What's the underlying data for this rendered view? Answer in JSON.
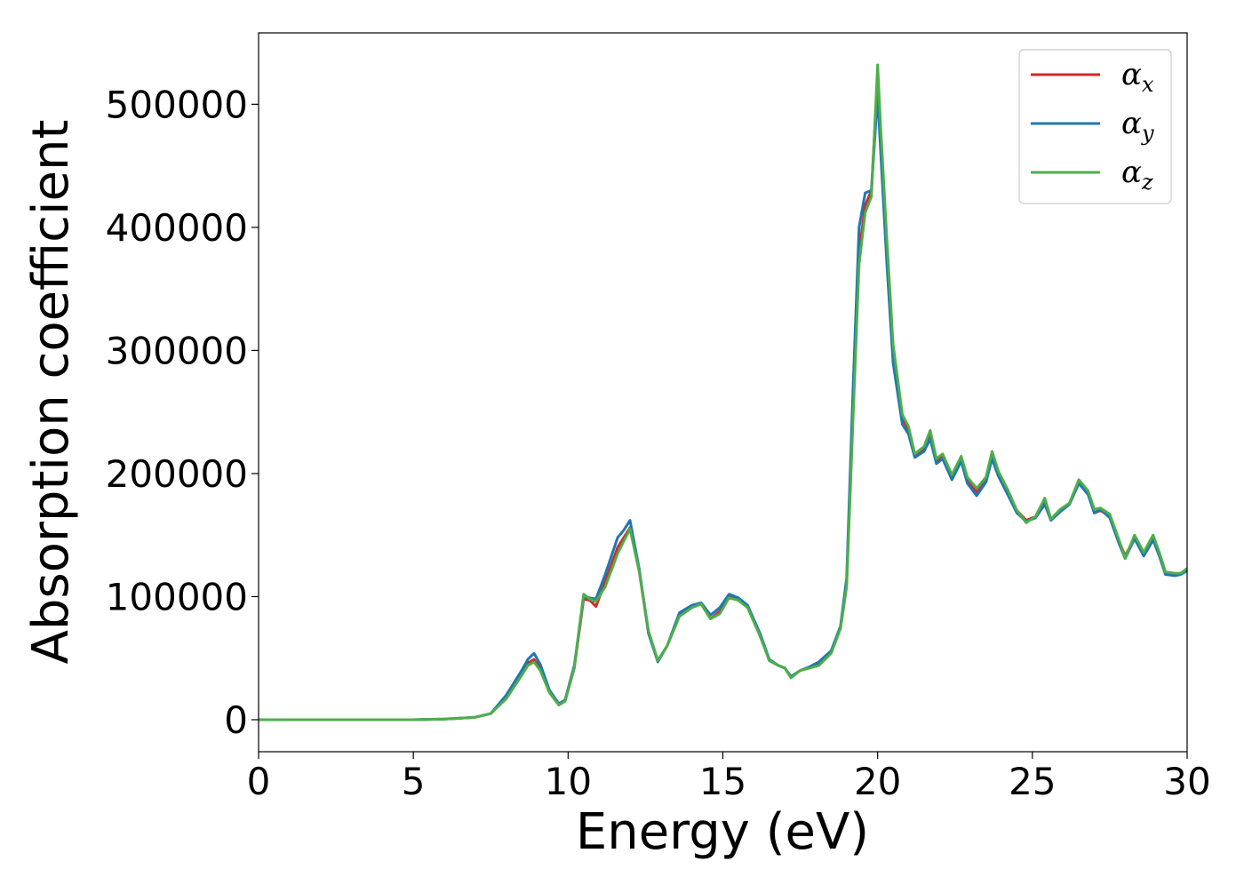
{
  "chart_data": {
    "type": "line",
    "xlabel": "Energy (eV)",
    "ylabel": "Absorption coefficient",
    "xlim": [
      0,
      30
    ],
    "ylim": [
      -26000,
      558000
    ],
    "x_ticks": [
      0,
      5,
      10,
      15,
      20,
      25,
      30
    ],
    "y_ticks": [
      0,
      100000,
      200000,
      300000,
      400000,
      500000
    ],
    "legend_position": "upper-right",
    "grid": false,
    "series": [
      {
        "name": "α_x",
        "label_main": "α",
        "label_sub": "x",
        "color": "#d62728",
        "points": [
          [
            0,
            0
          ],
          [
            5,
            0
          ],
          [
            6,
            500
          ],
          [
            7,
            2000
          ],
          [
            7.5,
            5000
          ],
          [
            8,
            18000
          ],
          [
            8.5,
            38000
          ],
          [
            8.7,
            46000
          ],
          [
            8.9,
            49000
          ],
          [
            9.1,
            42000
          ],
          [
            9.4,
            22000
          ],
          [
            9.7,
            12000
          ],
          [
            9.9,
            15000
          ],
          [
            10.2,
            42000
          ],
          [
            10.5,
            98000
          ],
          [
            10.7,
            97000
          ],
          [
            10.9,
            92000
          ],
          [
            11.2,
            112000
          ],
          [
            11.6,
            140000
          ],
          [
            11.8,
            148000
          ],
          [
            12.0,
            156000
          ],
          [
            12.3,
            120000
          ],
          [
            12.6,
            70000
          ],
          [
            12.9,
            48000
          ],
          [
            13.2,
            60000
          ],
          [
            13.6,
            85000
          ],
          [
            14.0,
            92000
          ],
          [
            14.3,
            94000
          ],
          [
            14.6,
            82000
          ],
          [
            14.9,
            88000
          ],
          [
            15.2,
            100000
          ],
          [
            15.5,
            98000
          ],
          [
            15.8,
            92000
          ],
          [
            16.2,
            70000
          ],
          [
            16.5,
            48000
          ],
          [
            16.8,
            44000
          ],
          [
            17.0,
            42000
          ],
          [
            17.2,
            35000
          ],
          [
            17.5,
            40000
          ],
          [
            17.8,
            42000
          ],
          [
            18.1,
            45000
          ],
          [
            18.5,
            55000
          ],
          [
            18.8,
            75000
          ],
          [
            19.0,
            110000
          ],
          [
            19.2,
            250000
          ],
          [
            19.4,
            380000
          ],
          [
            19.6,
            418000
          ],
          [
            19.8,
            430000
          ],
          [
            20.0,
            522000
          ],
          [
            20.1,
            470000
          ],
          [
            20.3,
            380000
          ],
          [
            20.5,
            300000
          ],
          [
            20.8,
            245000
          ],
          [
            21.0,
            235000
          ],
          [
            21.2,
            215000
          ],
          [
            21.5,
            220000
          ],
          [
            21.7,
            232000
          ],
          [
            21.9,
            210000
          ],
          [
            22.1,
            215000
          ],
          [
            22.4,
            198000
          ],
          [
            22.7,
            212000
          ],
          [
            22.9,
            195000
          ],
          [
            23.2,
            185000
          ],
          [
            23.5,
            196000
          ],
          [
            23.7,
            215000
          ],
          [
            23.9,
            200000
          ],
          [
            24.2,
            185000
          ],
          [
            24.5,
            170000
          ],
          [
            24.8,
            162000
          ],
          [
            25.1,
            165000
          ],
          [
            25.4,
            177000
          ],
          [
            25.6,
            163000
          ],
          [
            25.9,
            170000
          ],
          [
            26.2,
            176000
          ],
          [
            26.5,
            193000
          ],
          [
            26.8,
            185000
          ],
          [
            27.0,
            168000
          ],
          [
            27.2,
            170000
          ],
          [
            27.5,
            165000
          ],
          [
            27.8,
            145000
          ],
          [
            28.0,
            133000
          ],
          [
            28.3,
            148000
          ],
          [
            28.6,
            135000
          ],
          [
            28.9,
            148000
          ],
          [
            29.1,
            135000
          ],
          [
            29.3,
            120000
          ],
          [
            29.6,
            118000
          ],
          [
            29.8,
            119000
          ],
          [
            30,
            122000
          ]
        ]
      },
      {
        "name": "α_y",
        "label_main": "α",
        "label_sub": "y",
        "color": "#1f77b4",
        "points": [
          [
            0,
            0
          ],
          [
            5,
            0
          ],
          [
            6,
            500
          ],
          [
            7,
            2000
          ],
          [
            7.5,
            5000
          ],
          [
            8,
            20000
          ],
          [
            8.5,
            40000
          ],
          [
            8.7,
            49000
          ],
          [
            8.9,
            54000
          ],
          [
            9.1,
            45000
          ],
          [
            9.4,
            24000
          ],
          [
            9.7,
            13000
          ],
          [
            9.9,
            16000
          ],
          [
            10.2,
            44000
          ],
          [
            10.5,
            100000
          ],
          [
            10.7,
            99000
          ],
          [
            10.9,
            98000
          ],
          [
            11.2,
            118000
          ],
          [
            11.6,
            148000
          ],
          [
            11.8,
            154000
          ],
          [
            12.0,
            162000
          ],
          [
            12.3,
            122000
          ],
          [
            12.6,
            70000
          ],
          [
            12.9,
            47000
          ],
          [
            13.2,
            60000
          ],
          [
            13.6,
            87000
          ],
          [
            14.0,
            93000
          ],
          [
            14.3,
            95000
          ],
          [
            14.6,
            85000
          ],
          [
            14.9,
            91000
          ],
          [
            15.2,
            102000
          ],
          [
            15.5,
            99000
          ],
          [
            15.8,
            93000
          ],
          [
            16.2,
            70000
          ],
          [
            16.5,
            49000
          ],
          [
            16.8,
            44000
          ],
          [
            17.0,
            42000
          ],
          [
            17.2,
            35000
          ],
          [
            17.5,
            40000
          ],
          [
            17.8,
            43000
          ],
          [
            18.1,
            47000
          ],
          [
            18.5,
            56000
          ],
          [
            18.8,
            76000
          ],
          [
            19.0,
            115000
          ],
          [
            19.2,
            265000
          ],
          [
            19.4,
            400000
          ],
          [
            19.6,
            428000
          ],
          [
            19.8,
            430000
          ],
          [
            20.0,
            508000
          ],
          [
            20.1,
            460000
          ],
          [
            20.3,
            370000
          ],
          [
            20.5,
            290000
          ],
          [
            20.8,
            240000
          ],
          [
            21.0,
            232000
          ],
          [
            21.2,
            213000
          ],
          [
            21.5,
            218000
          ],
          [
            21.7,
            228000
          ],
          [
            21.9,
            208000
          ],
          [
            22.1,
            212000
          ],
          [
            22.4,
            195000
          ],
          [
            22.7,
            210000
          ],
          [
            22.9,
            192000
          ],
          [
            23.2,
            182000
          ],
          [
            23.5,
            193000
          ],
          [
            23.7,
            212000
          ],
          [
            23.9,
            198000
          ],
          [
            24.2,
            183000
          ],
          [
            24.5,
            168000
          ],
          [
            24.8,
            161000
          ],
          [
            25.1,
            164000
          ],
          [
            25.4,
            175000
          ],
          [
            25.6,
            162000
          ],
          [
            25.9,
            169000
          ],
          [
            26.2,
            175000
          ],
          [
            26.5,
            192000
          ],
          [
            26.8,
            183000
          ],
          [
            27.0,
            168000
          ],
          [
            27.2,
            171000
          ],
          [
            27.5,
            164000
          ],
          [
            27.8,
            143000
          ],
          [
            28.0,
            131000
          ],
          [
            28.3,
            147000
          ],
          [
            28.6,
            133000
          ],
          [
            28.9,
            146000
          ],
          [
            29.1,
            133000
          ],
          [
            29.3,
            118000
          ],
          [
            29.6,
            117000
          ],
          [
            29.8,
            118000
          ],
          [
            30,
            121000
          ]
        ]
      },
      {
        "name": "α_z",
        "label_main": "α",
        "label_sub": "z",
        "color": "#4daf4a",
        "points": [
          [
            0,
            0
          ],
          [
            5,
            0
          ],
          [
            6,
            500
          ],
          [
            7,
            2000
          ],
          [
            7.5,
            5000
          ],
          [
            8,
            17000
          ],
          [
            8.5,
            36000
          ],
          [
            8.7,
            44000
          ],
          [
            8.9,
            47000
          ],
          [
            9.1,
            40000
          ],
          [
            9.4,
            22000
          ],
          [
            9.7,
            12000
          ],
          [
            9.9,
            15000
          ],
          [
            10.2,
            42000
          ],
          [
            10.5,
            102000
          ],
          [
            10.7,
            98000
          ],
          [
            10.9,
            96000
          ],
          [
            11.2,
            108000
          ],
          [
            11.6,
            135000
          ],
          [
            11.8,
            145000
          ],
          [
            12.0,
            155000
          ],
          [
            12.3,
            120000
          ],
          [
            12.6,
            72000
          ],
          [
            12.9,
            48000
          ],
          [
            13.2,
            60000
          ],
          [
            13.6,
            84000
          ],
          [
            14.0,
            91000
          ],
          [
            14.3,
            94000
          ],
          [
            14.6,
            82000
          ],
          [
            14.9,
            86000
          ],
          [
            15.2,
            99000
          ],
          [
            15.5,
            97000
          ],
          [
            15.8,
            91000
          ],
          [
            16.2,
            68000
          ],
          [
            16.5,
            48000
          ],
          [
            16.8,
            44000
          ],
          [
            17.0,
            42000
          ],
          [
            17.2,
            34000
          ],
          [
            17.5,
            40000
          ],
          [
            17.8,
            42000
          ],
          [
            18.1,
            44000
          ],
          [
            18.5,
            54000
          ],
          [
            18.8,
            74000
          ],
          [
            19.0,
            108000
          ],
          [
            19.2,
            240000
          ],
          [
            19.4,
            370000
          ],
          [
            19.6,
            412000
          ],
          [
            19.8,
            425000
          ],
          [
            20.0,
            532000
          ],
          [
            20.1,
            480000
          ],
          [
            20.3,
            390000
          ],
          [
            20.5,
            305000
          ],
          [
            20.8,
            248000
          ],
          [
            21.0,
            238000
          ],
          [
            21.2,
            216000
          ],
          [
            21.5,
            222000
          ],
          [
            21.7,
            235000
          ],
          [
            21.9,
            212000
          ],
          [
            22.1,
            216000
          ],
          [
            22.4,
            199000
          ],
          [
            22.7,
            214000
          ],
          [
            22.9,
            197000
          ],
          [
            23.2,
            188000
          ],
          [
            23.5,
            197000
          ],
          [
            23.7,
            218000
          ],
          [
            23.9,
            202000
          ],
          [
            24.2,
            187000
          ],
          [
            24.5,
            170000
          ],
          [
            24.8,
            160000
          ],
          [
            25.1,
            165000
          ],
          [
            25.4,
            180000
          ],
          [
            25.6,
            163000
          ],
          [
            25.9,
            171000
          ],
          [
            26.2,
            176000
          ],
          [
            26.5,
            195000
          ],
          [
            26.8,
            186000
          ],
          [
            27.0,
            171000
          ],
          [
            27.2,
            172000
          ],
          [
            27.5,
            167000
          ],
          [
            27.8,
            146000
          ],
          [
            28.0,
            131000
          ],
          [
            28.3,
            150000
          ],
          [
            28.6,
            136000
          ],
          [
            28.9,
            150000
          ],
          [
            29.1,
            136000
          ],
          [
            29.3,
            120000
          ],
          [
            29.6,
            119000
          ],
          [
            29.8,
            119000
          ],
          [
            30,
            123000
          ]
        ]
      }
    ]
  }
}
